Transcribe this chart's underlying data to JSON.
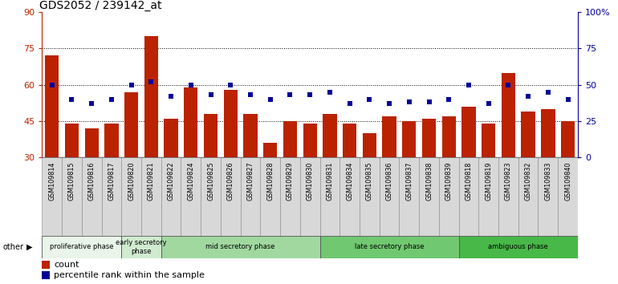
{
  "title": "GDS2052 / 239142_at",
  "categories": [
    "GSM109814",
    "GSM109815",
    "GSM109816",
    "GSM109817",
    "GSM109820",
    "GSM109821",
    "GSM109822",
    "GSM109824",
    "GSM109825",
    "GSM109826",
    "GSM109827",
    "GSM109828",
    "GSM109829",
    "GSM109830",
    "GSM109831",
    "GSM109834",
    "GSM109835",
    "GSM109836",
    "GSM109837",
    "GSM109838",
    "GSM109839",
    "GSM109818",
    "GSM109819",
    "GSM109823",
    "GSM109832",
    "GSM109833",
    "GSM109840"
  ],
  "red_bars": [
    72,
    44,
    42,
    44,
    57,
    80,
    46,
    59,
    48,
    58,
    48,
    36,
    45,
    44,
    48,
    44,
    40,
    47,
    45,
    46,
    47,
    51,
    44,
    65,
    49,
    50,
    45
  ],
  "blue_dots_pct": [
    50,
    40,
    37,
    40,
    50,
    52,
    42,
    50,
    43,
    50,
    43,
    40,
    43,
    43,
    45,
    37,
    40,
    37,
    38,
    38,
    40,
    50,
    37,
    50,
    42,
    45,
    40
  ],
  "phases": [
    {
      "label": "proliferative phase",
      "start": 0,
      "end": 4,
      "color": "#e8f5e8"
    },
    {
      "label": "early secretory\nphase",
      "start": 4,
      "end": 6,
      "color": "#d0ebd0"
    },
    {
      "label": "mid secretory phase",
      "start": 6,
      "end": 14,
      "color": "#a0d8a0"
    },
    {
      "label": "late secretory phase",
      "start": 14,
      "end": 21,
      "color": "#70c870"
    },
    {
      "label": "ambiguous phase",
      "start": 21,
      "end": 27,
      "color": "#48b848"
    }
  ],
  "ylim_left": [
    30,
    90
  ],
  "ylim_right": [
    0,
    100
  ],
  "yticks_left": [
    30,
    45,
    60,
    75,
    90
  ],
  "yticks_right": [
    0,
    25,
    50,
    75,
    100
  ],
  "yticklabels_right": [
    "0",
    "25",
    "50",
    "75",
    "100%"
  ],
  "bar_color": "#bb2200",
  "dot_color": "#000099",
  "title_fontsize": 10,
  "gridlines_at": [
    45,
    60,
    75
  ]
}
